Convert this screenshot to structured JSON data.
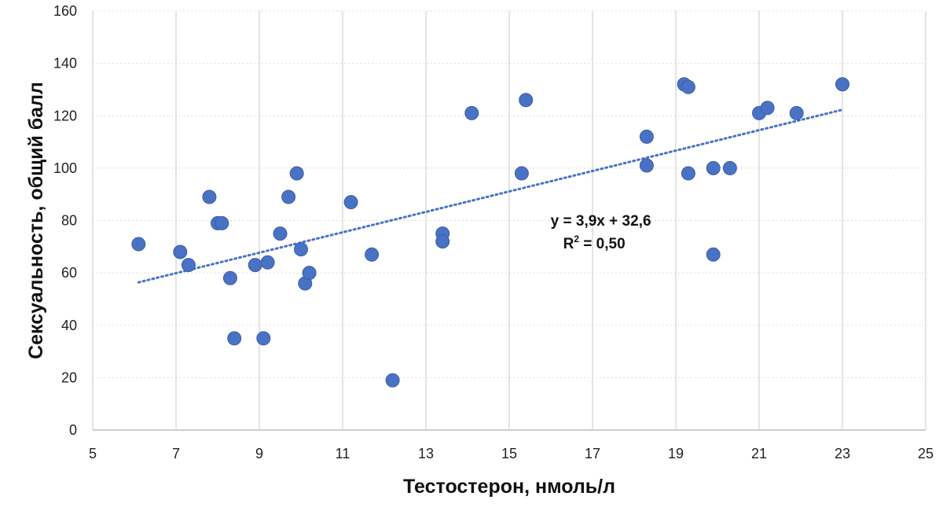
{
  "chart_data": {
    "type": "scatter",
    "xlabel": "Тестостерон, нмоль/л",
    "ylabel": "Сексуальность, общий балл",
    "xlim": [
      5,
      25
    ],
    "ylim": [
      0,
      160
    ],
    "x_ticks": [
      "5",
      "7",
      "9",
      "11",
      "13",
      "15",
      "17",
      "19",
      "21",
      "23",
      "25"
    ],
    "y_ticks": [
      "0",
      "20",
      "40",
      "60",
      "80",
      "100",
      "120",
      "140",
      "160"
    ],
    "grid": true,
    "colors": {
      "marker": "#4a72c4",
      "trend": "#4a72c4",
      "grid": "#dcdcdc"
    },
    "series": [
      {
        "points": [
          [
            6.1,
            71
          ],
          [
            7.1,
            68
          ],
          [
            7.3,
            63
          ],
          [
            7.8,
            89
          ],
          [
            8.0,
            79
          ],
          [
            8.1,
            79
          ],
          [
            8.3,
            58
          ],
          [
            8.4,
            35
          ],
          [
            8.9,
            63
          ],
          [
            9.1,
            35
          ],
          [
            9.2,
            64
          ],
          [
            9.5,
            75
          ],
          [
            9.7,
            89
          ],
          [
            9.9,
            98
          ],
          [
            10.0,
            69
          ],
          [
            10.1,
            56
          ],
          [
            10.2,
            60
          ],
          [
            11.2,
            87
          ],
          [
            11.7,
            67
          ],
          [
            12.2,
            19
          ],
          [
            13.4,
            75
          ],
          [
            13.4,
            72
          ],
          [
            14.1,
            121
          ],
          [
            15.3,
            98
          ],
          [
            15.4,
            126
          ],
          [
            18.3,
            112
          ],
          [
            18.3,
            101
          ],
          [
            19.2,
            132
          ],
          [
            19.3,
            131
          ],
          [
            19.3,
            98
          ],
          [
            19.9,
            100
          ],
          [
            19.9,
            67
          ],
          [
            20.3,
            100
          ],
          [
            21.0,
            121
          ],
          [
            21.2,
            123
          ],
          [
            21.9,
            121
          ],
          [
            23.0,
            132
          ]
        ]
      }
    ],
    "trendline": {
      "slope": 3.9,
      "intercept": 32.6,
      "x_range": [
        6.1,
        23.0
      ],
      "style": "dotted",
      "equation_text": "y = 3,9x + 32,6",
      "r2_prefix": "R",
      "r2_sup": "2",
      "r2_suffix": " = 0,50",
      "label_anchor": [
        17.2,
        78
      ]
    }
  }
}
